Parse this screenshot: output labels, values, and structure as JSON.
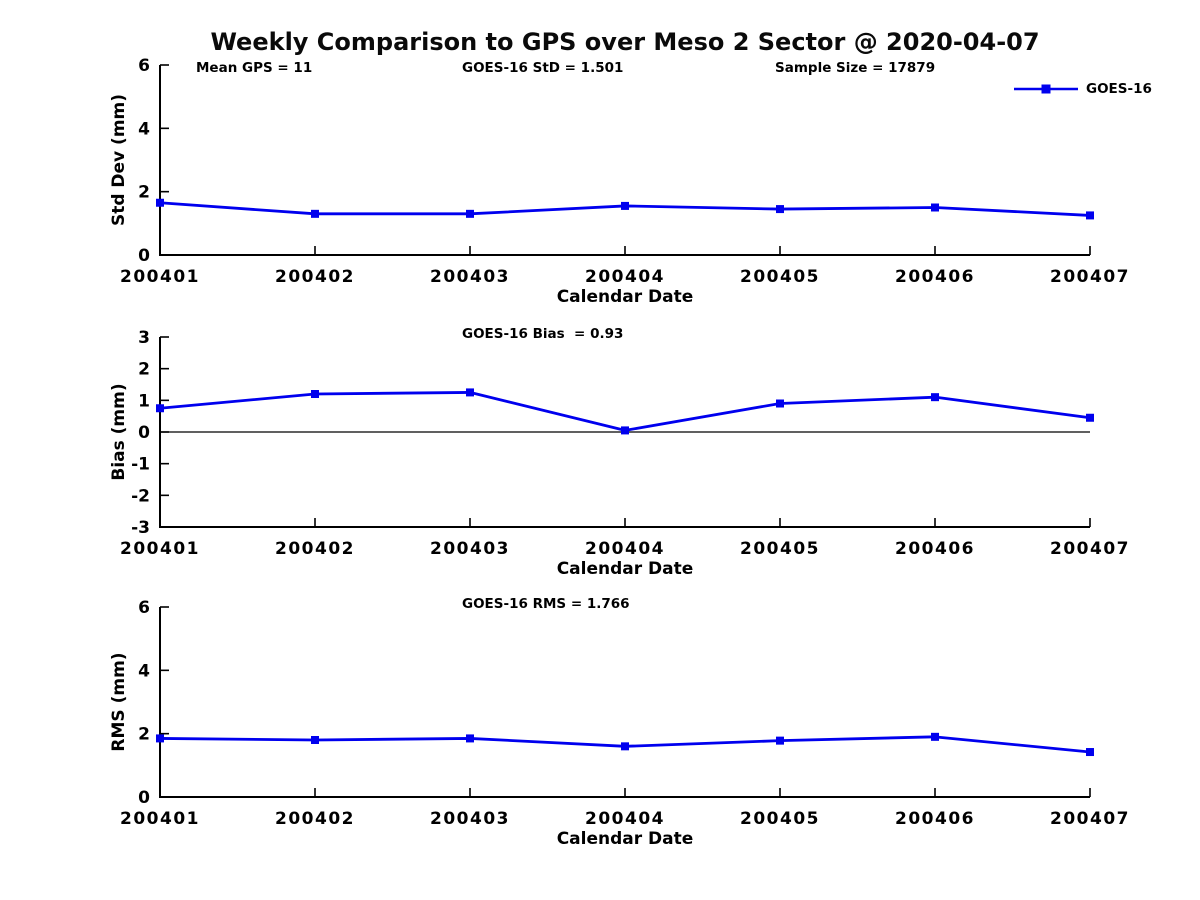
{
  "title": "Weekly Comparison to GPS over Meso 2 Sector @ 2020-04-07",
  "stats": {
    "mean_gps": "Mean GPS = 11",
    "goes16_std": "GOES-16 StD = 1.501",
    "sample_size": "Sample Size = 17879"
  },
  "legend": {
    "label": "GOES-16",
    "position": "top-right",
    "marker": "filled-square"
  },
  "colors": {
    "series": "#0000EE",
    "axis": "#000000",
    "text": "#000000",
    "background": "#FFFFFF"
  },
  "chart_data": [
    {
      "type": "line",
      "title": "",
      "x_categories": [
        "200401",
        "200402",
        "200403",
        "200404",
        "200405",
        "200406",
        "200407"
      ],
      "series": [
        {
          "name": "GOES-16",
          "values": [
            1.65,
            1.3,
            1.3,
            1.55,
            1.45,
            1.5,
            1.25
          ]
        }
      ],
      "xlabel": "Calendar Date",
      "ylabel": "Std Dev (mm)",
      "ylim": [
        0,
        6
      ],
      "yticks": [
        0,
        2,
        4,
        6
      ],
      "grid": false,
      "zero_line": false,
      "legend_position": "top-right"
    },
    {
      "type": "line",
      "title": "GOES-16 Bias  = 0.93",
      "x_categories": [
        "200401",
        "200402",
        "200403",
        "200404",
        "200405",
        "200406",
        "200407"
      ],
      "series": [
        {
          "name": "GOES-16",
          "values": [
            0.75,
            1.2,
            1.25,
            0.05,
            0.9,
            1.1,
            0.45
          ]
        }
      ],
      "xlabel": "Calendar Date",
      "ylabel": "Bias (mm)",
      "ylim": [
        -3,
        3
      ],
      "yticks": [
        -3,
        -2,
        -1,
        0,
        1,
        2,
        3
      ],
      "grid": false,
      "zero_line": true
    },
    {
      "type": "line",
      "title": "GOES-16 RMS = 1.766",
      "x_categories": [
        "200401",
        "200402",
        "200403",
        "200404",
        "200405",
        "200406",
        "200407"
      ],
      "series": [
        {
          "name": "GOES-16",
          "values": [
            1.85,
            1.8,
            1.85,
            1.6,
            1.78,
            1.9,
            1.42
          ]
        }
      ],
      "xlabel": "Calendar Date",
      "ylabel": "RMS (mm)",
      "ylim": [
        0,
        6
      ],
      "yticks": [
        0,
        2,
        4,
        6
      ],
      "grid": false,
      "zero_line": false
    }
  ]
}
